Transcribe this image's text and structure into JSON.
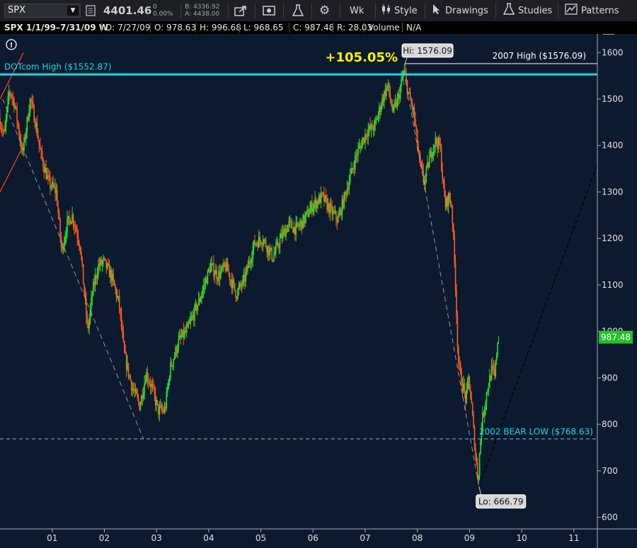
{
  "toolbar": {
    "symbol": "SPX",
    "price": "4401.46",
    "change": "0",
    "change_pct": "0.00%",
    "bid": "B: 4336.92",
    "ask": "A: 4438.00",
    "aggregation": "Wk",
    "style_label": "Style",
    "drawings_label": "Drawings",
    "studies_label": "Studies",
    "patterns_label": "Patterns",
    "icons": [
      "share-icon",
      "chart-settings-icon",
      "flask-icon",
      "gear-icon",
      "candles-icon",
      "cursor-icon",
      "flask-icon",
      "patterns-icon"
    ]
  },
  "infobar": {
    "title": "SPX 1/1/99–7/31/09 W",
    "date": "D: 7/27/09",
    "open": "O: 978.63",
    "high": "H: 996.68",
    "low": "L: 968.65",
    "close": "C: 987.48",
    "range": "R: 28.03",
    "volume_label": "Volume",
    "volume_value": "N/A"
  },
  "colors": {
    "background": "#0b1a2e",
    "up": "#27e32f",
    "down": "#ff5a1f",
    "cyan": "#19d6e6",
    "label_yellow": "#fff200"
  },
  "chart_data": {
    "type": "candlestick",
    "x_tick_labels": [
      "01",
      "02",
      "03",
      "04",
      "05",
      "06",
      "07",
      "08",
      "09",
      "10",
      "11"
    ],
    "x_ticks": [
      2001,
      2002,
      2003,
      2004,
      2005,
      2006,
      2007,
      2008,
      2009,
      2010,
      2011
    ],
    "xlim": [
      2000.0,
      2011.45
    ],
    "y_ticks": [
      600,
      700,
      800,
      900,
      1000,
      1100,
      1200,
      1300,
      1400,
      1500,
      1600
    ],
    "ylim": [
      575,
      1640
    ],
    "last_price": "987.48",
    "last_value": 987.48,
    "anchors": [
      [
        2000.0,
        1460
      ],
      [
        2000.1,
        1420
      ],
      [
        2000.2,
        1520
      ],
      [
        2000.3,
        1490
      ],
      [
        2000.45,
        1380
      ],
      [
        2000.6,
        1500
      ],
      [
        2000.7,
        1450
      ],
      [
        2000.8,
        1380
      ],
      [
        2000.95,
        1320
      ],
      [
        2001.1,
        1300
      ],
      [
        2001.2,
        1170
      ],
      [
        2001.3,
        1230
      ],
      [
        2001.4,
        1250
      ],
      [
        2001.55,
        1190
      ],
      [
        2001.7,
        1000
      ],
      [
        2001.8,
        1090
      ],
      [
        2001.9,
        1140
      ],
      [
        2002.0,
        1150
      ],
      [
        2002.15,
        1120
      ],
      [
        2002.3,
        1060
      ],
      [
        2002.4,
        950
      ],
      [
        2002.55,
        880
      ],
      [
        2002.7,
        840
      ],
      [
        2002.82,
        910
      ],
      [
        2002.93,
        880
      ],
      [
        2003.05,
        830
      ],
      [
        2003.18,
        830
      ],
      [
        2003.28,
        920
      ],
      [
        2003.45,
        980
      ],
      [
        2003.6,
        1000
      ],
      [
        2003.85,
        1070
      ],
      [
        2004.05,
        1140
      ],
      [
        2004.2,
        1120
      ],
      [
        2004.35,
        1140
      ],
      [
        2004.55,
        1080
      ],
      [
        2004.7,
        1110
      ],
      [
        2004.9,
        1190
      ],
      [
        2005.05,
        1200
      ],
      [
        2005.25,
        1160
      ],
      [
        2005.4,
        1200
      ],
      [
        2005.55,
        1230
      ],
      [
        2005.7,
        1220
      ],
      [
        2005.85,
        1240
      ],
      [
        2006.0,
        1270
      ],
      [
        2006.2,
        1290
      ],
      [
        2006.35,
        1260
      ],
      [
        2006.5,
        1240
      ],
      [
        2006.65,
        1300
      ],
      [
        2006.85,
        1380
      ],
      [
        2007.05,
        1430
      ],
      [
        2007.2,
        1440
      ],
      [
        2007.35,
        1500
      ],
      [
        2007.45,
        1530
      ],
      [
        2007.55,
        1470
      ],
      [
        2007.65,
        1500
      ],
      [
        2007.76,
        1560
      ],
      [
        2007.85,
        1510
      ],
      [
        2007.95,
        1470
      ],
      [
        2008.05,
        1370
      ],
      [
        2008.15,
        1320
      ],
      [
        2008.25,
        1370
      ],
      [
        2008.35,
        1410
      ],
      [
        2008.45,
        1400
      ],
      [
        2008.55,
        1270
      ],
      [
        2008.62,
        1290
      ],
      [
        2008.68,
        1270
      ],
      [
        2008.75,
        1100
      ],
      [
        2008.8,
        940
      ],
      [
        2008.85,
        900
      ],
      [
        2008.9,
        880
      ],
      [
        2008.95,
        850
      ],
      [
        2009.0,
        900
      ],
      [
        2009.05,
        850
      ],
      [
        2009.1,
        780
      ],
      [
        2009.18,
        680
      ],
      [
        2009.25,
        800
      ],
      [
        2009.35,
        870
      ],
      [
        2009.45,
        920
      ],
      [
        2009.5,
        900
      ],
      [
        2009.56,
        985
      ]
    ],
    "annotations": {
      "dotcom_high_label": "DOTcom High ($1552.87)",
      "dotcom_high_value": 1552.87,
      "high_2007_label": "2007 High ($1576.09)",
      "high_2007_value": 1576.09,
      "hi_bubble": "Hi: 1576.09",
      "hi_x": 2007.76,
      "pct_gain": "+105.05%",
      "bear_low_label": "2002 BEAR LOW ($768.63)",
      "bear_low_value": 768.63,
      "lo_bubble": "Lo: 666.79",
      "lo_value": 666.79,
      "lo_x": 2009.18,
      "bear_low_x": 2002.75
    }
  }
}
